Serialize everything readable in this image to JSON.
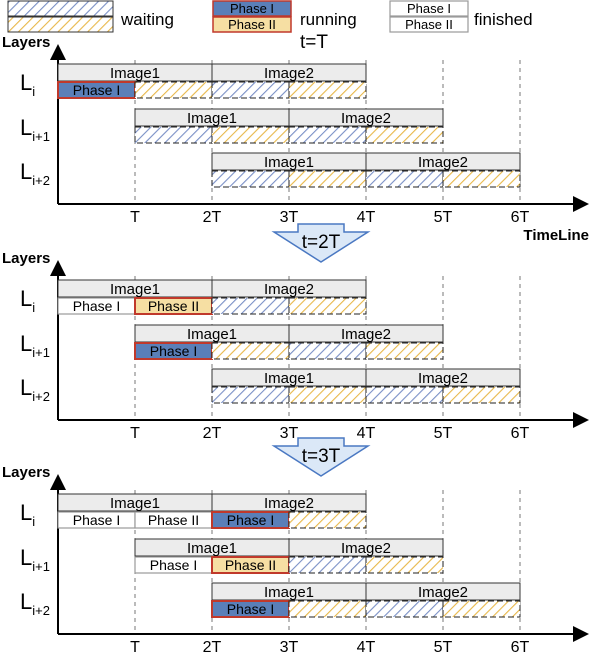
{
  "legend": {
    "waiting": "waiting",
    "running": "running",
    "finished": "finished",
    "phase1": "Phase I",
    "phase2": "Phase II"
  },
  "colors": {
    "waiting_blue": "#7a90c6",
    "waiting_yellow": "#e8b84a",
    "running_blue": "#5a7fb8",
    "running_yellow": "#f6dfa3",
    "running_border": "#c0392b",
    "finished_border": "#9a9a9a",
    "image_bar_fill": "#ececec",
    "grid_dash": "#777777",
    "arrow_fill": "#dbe8f7",
    "arrow_stroke": "#4a78c2"
  },
  "axis": {
    "ylabel": "Layers",
    "xlabel": "TimeLine",
    "ticks": [
      "T",
      "2T",
      "3T",
      "4T",
      "5T",
      "6T"
    ]
  },
  "layers": [
    {
      "base": "L",
      "sub": "i"
    },
    {
      "base": "L",
      "sub": "i+1"
    },
    {
      "base": "L",
      "sub": "i+2"
    }
  ],
  "images": [
    "Image1",
    "Image2"
  ],
  "snapshots": [
    {
      "time_label": "t=T",
      "rows": [
        {
          "cells": [
            {
              "phase": 1,
              "state": "running"
            },
            {
              "phase": 2,
              "state": "waiting"
            },
            {
              "phase": 1,
              "state": "waiting"
            },
            {
              "phase": 2,
              "state": "waiting"
            }
          ]
        },
        {
          "cells": [
            {
              "phase": 1,
              "state": "waiting"
            },
            {
              "phase": 2,
              "state": "waiting"
            },
            {
              "phase": 1,
              "state": "waiting"
            },
            {
              "phase": 2,
              "state": "waiting"
            }
          ]
        },
        {
          "cells": [
            {
              "phase": 1,
              "state": "waiting"
            },
            {
              "phase": 2,
              "state": "waiting"
            },
            {
              "phase": 1,
              "state": "waiting"
            },
            {
              "phase": 2,
              "state": "waiting"
            }
          ]
        }
      ]
    },
    {
      "time_label": "t=2T",
      "rows": [
        {
          "cells": [
            {
              "phase": 1,
              "state": "finished"
            },
            {
              "phase": 2,
              "state": "running"
            },
            {
              "phase": 1,
              "state": "waiting"
            },
            {
              "phase": 2,
              "state": "waiting"
            }
          ]
        },
        {
          "cells": [
            {
              "phase": 1,
              "state": "running"
            },
            {
              "phase": 2,
              "state": "waiting"
            },
            {
              "phase": 1,
              "state": "waiting"
            },
            {
              "phase": 2,
              "state": "waiting"
            }
          ]
        },
        {
          "cells": [
            {
              "phase": 1,
              "state": "waiting"
            },
            {
              "phase": 2,
              "state": "waiting"
            },
            {
              "phase": 1,
              "state": "waiting"
            },
            {
              "phase": 2,
              "state": "waiting"
            }
          ]
        }
      ]
    },
    {
      "time_label": "t=3T",
      "rows": [
        {
          "cells": [
            {
              "phase": 1,
              "state": "finished"
            },
            {
              "phase": 2,
              "state": "finished"
            },
            {
              "phase": 1,
              "state": "running"
            },
            {
              "phase": 2,
              "state": "waiting"
            }
          ]
        },
        {
          "cells": [
            {
              "phase": 1,
              "state": "finished"
            },
            {
              "phase": 2,
              "state": "running"
            },
            {
              "phase": 1,
              "state": "waiting"
            },
            {
              "phase": 2,
              "state": "waiting"
            }
          ]
        },
        {
          "cells": [
            {
              "phase": 1,
              "state": "running"
            },
            {
              "phase": 2,
              "state": "waiting"
            },
            {
              "phase": 1,
              "state": "waiting"
            },
            {
              "phase": 2,
              "state": "waiting"
            }
          ]
        }
      ]
    }
  ]
}
